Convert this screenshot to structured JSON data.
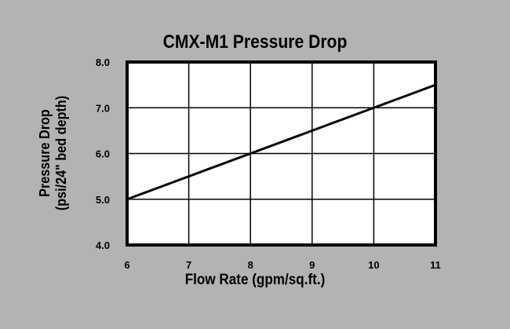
{
  "chart_data": {
    "type": "line",
    "title": "CMX-M1 Pressure Drop",
    "xlabel": "Flow Rate (gpm/sq.ft.)",
    "ylabel": [
      "Pressure Drop",
      "(psi/24\" bed depth)"
    ],
    "x": [
      6,
      7,
      8,
      9,
      10,
      11
    ],
    "series": [
      {
        "name": "CMX-M1",
        "values": [
          5.0,
          5.5,
          6.0,
          6.5,
          7.0,
          7.5
        ]
      }
    ],
    "xlim": [
      6,
      11
    ],
    "ylim": [
      4.0,
      8.0
    ],
    "xticks": [
      "6",
      "7",
      "8",
      "9",
      "10",
      "11"
    ],
    "yticks": [
      "4.0",
      "5.0",
      "6.0",
      "7.0",
      "8.0"
    ],
    "grid": true,
    "legend": null
  },
  "colors": {
    "background": "#b3b3b3",
    "plot": "#ffffff",
    "line": "#000000"
  }
}
